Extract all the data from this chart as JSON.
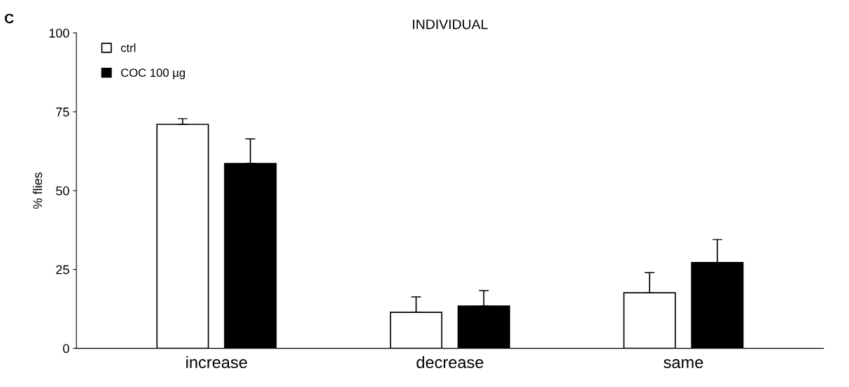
{
  "chart_data": {
    "type": "bar",
    "title": "INDIVIDUAL",
    "ylabel": "% flies",
    "categories": [
      "increase",
      "decrease",
      "same"
    ],
    "series": [
      {
        "name": "ctrl",
        "color": "#ffffff",
        "values": [
          71,
          11.4,
          17.6
        ],
        "errors": [
          [
            71,
            72.8
          ],
          [
            11.4,
            16.3
          ],
          [
            17.6,
            24
          ]
        ]
      },
      {
        "name": "COC 100 µg",
        "color": "#000000",
        "values": [
          58.6,
          13.4,
          27.2
        ],
        "errors": [
          [
            58.6,
            66.4
          ],
          [
            13.4,
            18.3
          ],
          [
            27.2,
            34.5
          ]
        ]
      }
    ],
    "ylim": [
      0,
      100
    ],
    "yticks": [
      0,
      25,
      50,
      75,
      100
    ],
    "grid": false,
    "legend": "top left",
    "annotations": [
      "C"
    ]
  }
}
